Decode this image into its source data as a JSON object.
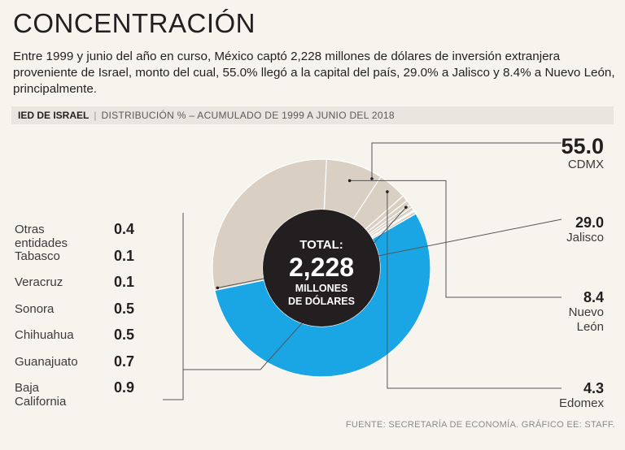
{
  "header": {
    "title": "CONCENTRACIÓN",
    "intro": "Entre 1999 y junio del año en curso, México captó 2,228 millones de dólares de inversión extranjera proveniente de Israel, monto del cual, 55.0% llegó a la capital del país, 29.0% a Jalisco y 8.4% a Nuevo León, principalmente.",
    "subhead_bold": "IED DE ISRAEL",
    "subhead_sep": "|",
    "subhead_rest": "DISTRIBUCIÓN % – ACUMULADO DE 1999 A JUNIO DEL 2018"
  },
  "chart_data": {
    "type": "pie",
    "subtype": "donut",
    "title": "IED DE ISRAEL",
    "center": {
      "line1": "TOTAL:",
      "line2": "2,228",
      "line3": "MILLONES",
      "line4": "DE DÓLARES"
    },
    "series": [
      {
        "name": "CDMX",
        "value": 55.0,
        "label": "55.0",
        "color": "#1aa6e4"
      },
      {
        "name": "Jalisco",
        "value": 29.0,
        "label": "29.0",
        "color": "#d9cfc2"
      },
      {
        "name": "Nuevo León",
        "value": 8.4,
        "label": "8.4",
        "color": "#d9cfc2"
      },
      {
        "name": "Edomex",
        "value": 4.3,
        "label": "4.3",
        "color": "#d9cfc2"
      },
      {
        "name": "Baja California",
        "value": 0.9,
        "label": "0.9",
        "color": "#d9cfc2"
      },
      {
        "name": "Guanajuato",
        "value": 0.7,
        "label": "0.7",
        "color": "#d9cfc2"
      },
      {
        "name": "Chihuahua",
        "value": 0.5,
        "label": "0.5",
        "color": "#d9cfc2"
      },
      {
        "name": "Sonora",
        "value": 0.5,
        "label": "0.5",
        "color": "#d9cfc2"
      },
      {
        "name": "Veracruz",
        "value": 0.1,
        "label": "0.1",
        "color": "#d9cfc2"
      },
      {
        "name": "Tabasco",
        "value": 0.1,
        "label": "0.1",
        "color": "#d9cfc2"
      },
      {
        "name": "Otras entidades",
        "value": 0.4,
        "label": "0.4",
        "color": "#d9cfc2"
      }
    ],
    "callouts": [
      {
        "value": "55.0",
        "name": "CDMX"
      },
      {
        "value": "29.0",
        "name": "Jalisco"
      },
      {
        "value": "8.4",
        "name_line1": "Nuevo",
        "name_line2": "León"
      },
      {
        "value": "4.3",
        "name": "Edomex"
      }
    ],
    "legend": [
      {
        "name": "Otras entidades",
        "value": "0.4"
      },
      {
        "name": "Tabasco",
        "value": "0.1"
      },
      {
        "name": "Veracruz",
        "value": "0.1"
      },
      {
        "name": "Sonora",
        "value": "0.5"
      },
      {
        "name": "Chihuahua",
        "value": "0.5"
      },
      {
        "name": "Guanajuato",
        "value": "0.7"
      },
      {
        "name": "Baja California",
        "value": "0.9"
      }
    ]
  },
  "footer": {
    "source": "FUENTE: SECRETARÍA DE ECONOMÍA. GRÁFICO EE: STAFF."
  }
}
